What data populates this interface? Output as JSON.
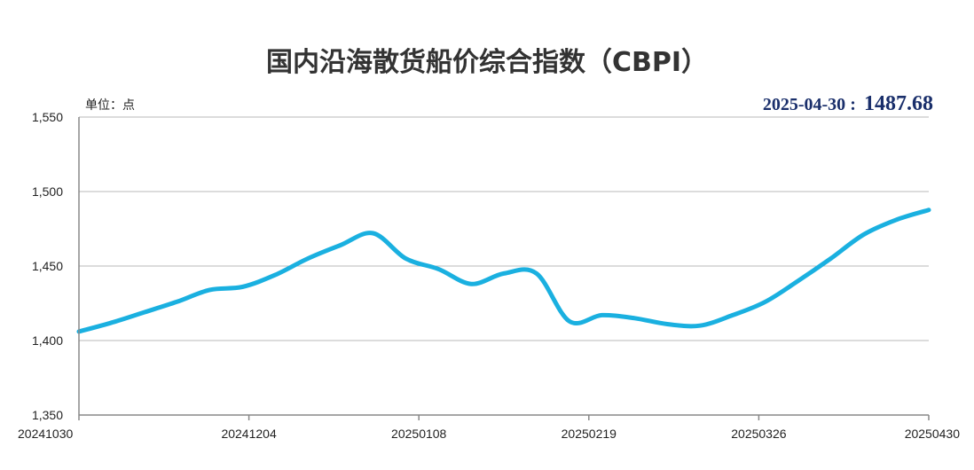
{
  "chart_data": {
    "type": "line",
    "title": "国内沿海散货船价综合指数（CBPI）",
    "unit_label": "单位：点",
    "highlight": {
      "date": "2025-04-30",
      "separator": ":",
      "value": "1487.68"
    },
    "ylim": [
      1350,
      1550
    ],
    "y_ticks": [
      "1,350",
      "1,400",
      "1,450",
      "1,500",
      "1,550"
    ],
    "y_tick_values": [
      1350,
      1400,
      1450,
      1500,
      1550
    ],
    "x_ticks": [
      "20241030",
      "20241204",
      "20250108",
      "20250219",
      "20250326",
      "20250430"
    ],
    "grid": true,
    "line_color": "#1ab0e0",
    "series": [
      {
        "x": [
          "2024-10-30",
          "2024-11-06",
          "2024-11-13",
          "2024-11-20",
          "2024-11-27",
          "2024-12-04",
          "2024-12-11",
          "2024-12-18",
          "2024-12-25",
          "2025-01-01",
          "2025-01-08",
          "2025-01-15",
          "2025-01-22",
          "2025-01-29",
          "2025-02-05",
          "2025-02-12",
          "2025-02-19",
          "2025-02-26",
          "2025-03-05",
          "2025-03-12",
          "2025-03-19",
          "2025-03-26",
          "2025-04-02",
          "2025-04-09",
          "2025-04-16",
          "2025-04-23",
          "2025-04-30"
        ],
        "values": [
          1406,
          1412,
          1419,
          1426,
          1434,
          1436,
          1444,
          1455,
          1464,
          1472,
          1455,
          1448,
          1438,
          1445,
          1445,
          1413,
          1417,
          1415,
          1411,
          1410,
          1417,
          1426,
          1440,
          1455,
          1471,
          1481,
          1487.68
        ]
      }
    ]
  }
}
